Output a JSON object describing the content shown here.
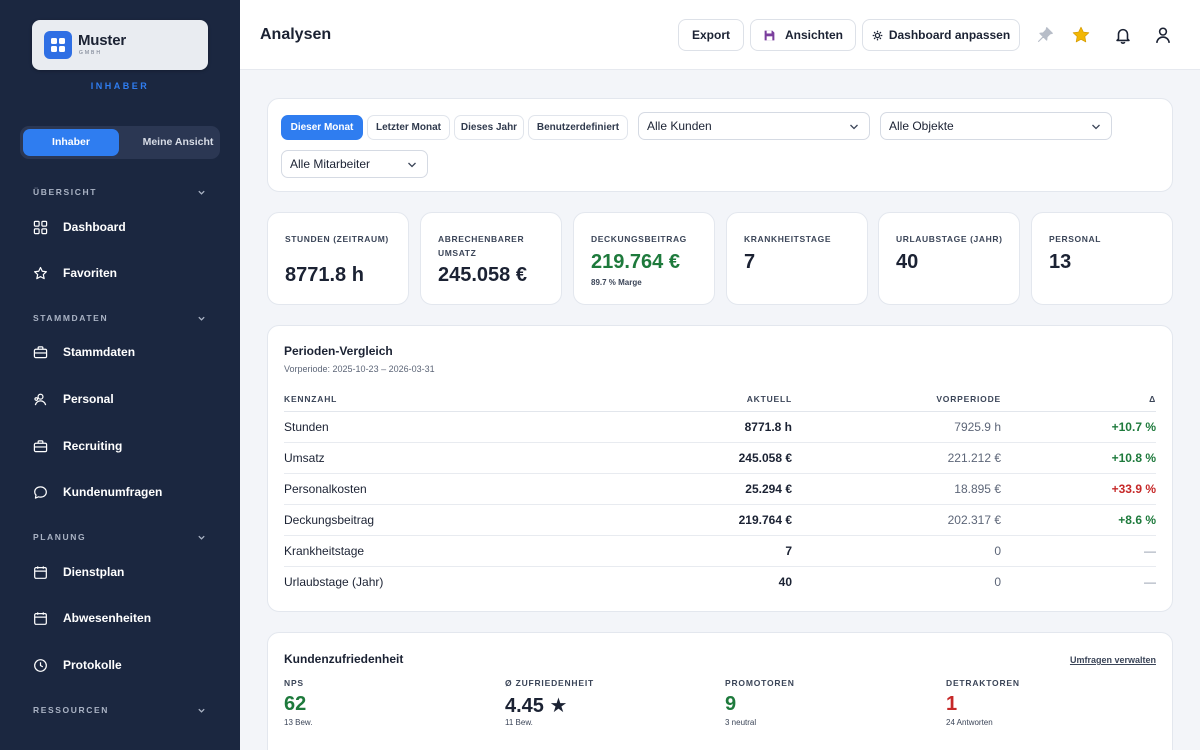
{
  "sidebar": {
    "logo": {
      "title": "Muster",
      "subtitle": "GMBH"
    },
    "role_label": "INHABER",
    "toggle": {
      "active": "Inhaber",
      "other": "Meine Ansicht"
    },
    "sections": [
      {
        "label": "ÜBERSICHT",
        "items": [
          {
            "label": "Dashboard",
            "icon": "grid-icon"
          },
          {
            "label": "Favoriten",
            "icon": "star-outline-icon"
          }
        ]
      },
      {
        "label": "STAMMDATEN",
        "items": [
          {
            "label": "Stammdaten",
            "icon": "briefcase-icon"
          },
          {
            "label": "Personal",
            "icon": "people-icon"
          },
          {
            "label": "Recruiting",
            "icon": "briefcase-icon"
          },
          {
            "label": "Kundenumfragen",
            "icon": "chat-icon"
          }
        ]
      },
      {
        "label": "PLANUNG",
        "items": [
          {
            "label": "Dienstplan",
            "icon": "calendar-icon"
          },
          {
            "label": "Abwesenheiten",
            "icon": "calendar-icon"
          },
          {
            "label": "Protokolle",
            "icon": "clock-icon"
          }
        ]
      },
      {
        "label": "RESSOURCEN",
        "items": []
      }
    ]
  },
  "header": {
    "title": "Analysen",
    "buttons": {
      "export": "Export",
      "views": "Ansichten",
      "customize": "Dashboard anpassen"
    },
    "icons": [
      "pin-icon",
      "star-icon",
      "bell-icon",
      "user-icon"
    ]
  },
  "filters": {
    "periods": [
      "Dieser Monat",
      "Letzter Monat",
      "Dieses Jahr",
      "Benutzerdefiniert"
    ],
    "active_period": "Dieser Monat",
    "customers": "Alle Kunden",
    "objects": "Alle Objekte",
    "employees": "Alle Mitarbeiter"
  },
  "kpis": [
    {
      "label": "STUNDEN (ZEITRAUM)",
      "value": "8771.8 h"
    },
    {
      "label": "ABRECHENBARER UMSATZ",
      "value": "245.058 €"
    },
    {
      "label": "DECKUNGSBEITRAG",
      "value": "219.764 €",
      "sub": "89.7 % Marge"
    },
    {
      "label": "KRANKHEITSTAGE",
      "value": "7"
    },
    {
      "label": "URLAUBSTAGE (JAHR)",
      "value": "40"
    },
    {
      "label": "PERSONAL",
      "value": "13"
    }
  ],
  "comparison": {
    "title": "Perioden-Vergleich",
    "caption": "Vorperiode: 2025-10-23 – 2026-03-31",
    "columns": [
      "KENNZAHL",
      "AKTUELL",
      "VORPERIODE",
      "Δ"
    ],
    "rows": [
      {
        "name": "Stunden",
        "current": "8771.8 h",
        "previous": "7925.9 h",
        "delta": "+10.7 %",
        "trend": "up"
      },
      {
        "name": "Umsatz",
        "current": "245.058 €",
        "previous": "221.212 €",
        "delta": "+10.8 %",
        "trend": "up"
      },
      {
        "name": "Personalkosten",
        "current": "25.294 €",
        "previous": "18.895 €",
        "delta": "+33.9 %",
        "trend": "down"
      },
      {
        "name": "Deckungsbeitrag",
        "current": "219.764 €",
        "previous": "202.317 €",
        "delta": "+8.6 %",
        "trend": "up"
      },
      {
        "name": "Krankheitstage",
        "current": "7",
        "previous": "0",
        "delta": "—",
        "trend": "neutral"
      },
      {
        "name": "Urlaubstage (Jahr)",
        "current": "40",
        "previous": "0",
        "delta": "—",
        "trend": "neutral"
      }
    ]
  },
  "satisfaction": {
    "title": "Kundenzufriedenheit",
    "link": "Umfragen verwalten",
    "metrics": [
      {
        "label": "NPS",
        "value": "62",
        "sub": "13 Bew.",
        "color": "#1e7a3c"
      },
      {
        "label": "Ø ZUFRIEDENHEIT",
        "value": "4.45 ★",
        "sub": "11 Bew.",
        "color": "#1b2233"
      },
      {
        "label": "PROMOTOREN",
        "value": "9",
        "sub": "3 neutral",
        "color": "#1e7a3c"
      },
      {
        "label": "DETRAKTOREN",
        "value": "1",
        "sub": "24 Antworten",
        "color": "#c62828"
      }
    ]
  },
  "colors": {
    "accent": "#2f7df0",
    "sidebar": "#1b2740",
    "positive": "#1e7a3c",
    "negative": "#c62828"
  }
}
